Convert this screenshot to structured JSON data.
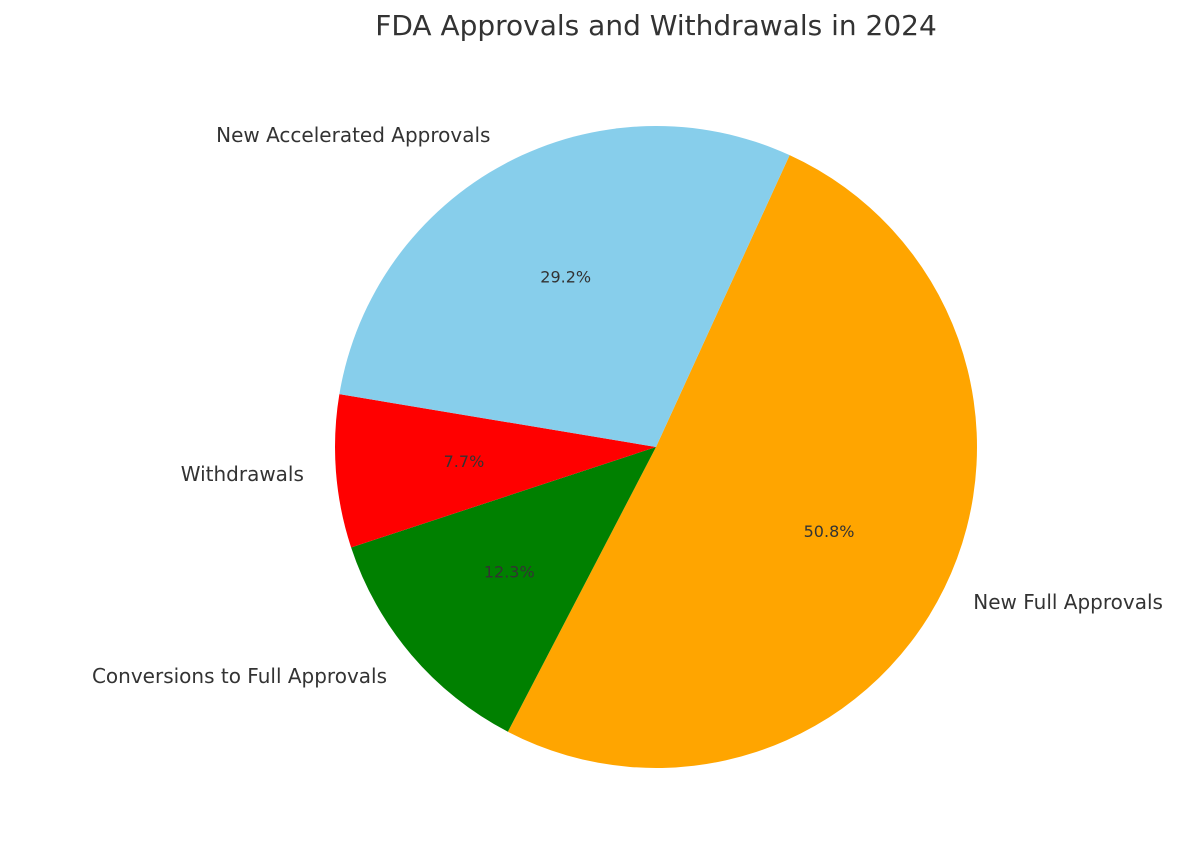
{
  "chart_data": {
    "type": "pie",
    "title": "FDA Approvals and Withdrawals in 2024",
    "slices": [
      {
        "label": "New Full Approvals",
        "value": 50.8,
        "pct_label": "50.8%",
        "color": "#FFA500"
      },
      {
        "label": "Conversions to Full Approvals",
        "value": 12.3,
        "pct_label": "12.3%",
        "color": "#008000"
      },
      {
        "label": "Withdrawals",
        "value": 7.7,
        "pct_label": "7.7%",
        "color": "#FF0000"
      },
      {
        "label": "New Accelerated Approvals",
        "value": 29.2,
        "pct_label": "29.2%",
        "color": "#87CEEB"
      }
    ]
  }
}
